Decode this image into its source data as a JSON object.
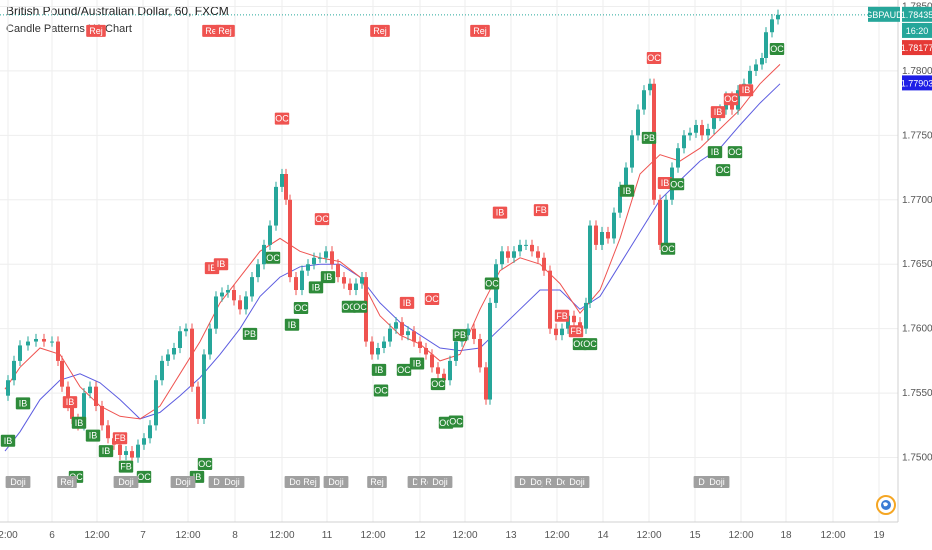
{
  "header": {
    "title": "British Pound/Australian Dollar, 60, FXCM",
    "indicator": "Candle Patterns H1 Chart"
  },
  "chart_data": {
    "type": "candlestick",
    "symbol": "GBPAUD",
    "timeframe": "60",
    "ylim": [
      1.745,
      1.7855
    ],
    "y_ticks": [
      1.75,
      1.755,
      1.76,
      1.765,
      1.77,
      1.775,
      1.78,
      1.785
    ],
    "y_tick_labels": [
      "1.75000",
      "1.75500",
      "1.76000",
      "1.76500",
      "1.77000",
      "1.77500",
      "1.78000",
      "1.78500"
    ],
    "x_ticks": [
      {
        "label": "2:00",
        "x": 8
      },
      {
        "label": "6",
        "x": 52
      },
      {
        "label": "12:00",
        "x": 97
      },
      {
        "label": "7",
        "x": 143
      },
      {
        "label": "12:00",
        "x": 188
      },
      {
        "label": "8",
        "x": 235
      },
      {
        "label": "12:00",
        "x": 282
      },
      {
        "label": "11",
        "x": 327
      },
      {
        "label": "12:00",
        "x": 373
      },
      {
        "label": "12",
        "x": 420
      },
      {
        "label": "12:00",
        "x": 465
      },
      {
        "label": "13",
        "x": 511
      },
      {
        "label": "12:00",
        "x": 557
      },
      {
        "label": "14",
        "x": 603
      },
      {
        "label": "12:00",
        "x": 649
      },
      {
        "label": "15",
        "x": 695
      },
      {
        "label": "12:00",
        "x": 741
      },
      {
        "label": "18",
        "x": 786
      },
      {
        "label": "12:00",
        "x": 833
      },
      {
        "label": "19",
        "x": 879
      }
    ],
    "price_labels": [
      {
        "text": "GBPAUD",
        "value": 1.78435,
        "color": "#26a69a"
      },
      {
        "text": "1.78435",
        "value": 1.78435,
        "color": "#26a69a"
      },
      {
        "text": "16:20",
        "value": 1.7831,
        "color": "#26a69a"
      },
      {
        "text": "1.78177",
        "value": 1.78177,
        "color": "#e53935"
      },
      {
        "text": "1.77903",
        "value": 1.77903,
        "color": "#1e1ee6"
      }
    ],
    "last_price": 1.78435,
    "ema_fast": {
      "color": "#ef5350",
      "values": [
        [
          5,
          1.7553
        ],
        [
          20,
          1.757
        ],
        [
          40,
          1.7585
        ],
        [
          60,
          1.758
        ],
        [
          80,
          1.7555
        ],
        [
          100,
          1.754
        ],
        [
          120,
          1.7532
        ],
        [
          140,
          1.753
        ],
        [
          160,
          1.754
        ],
        [
          180,
          1.7565
        ],
        [
          200,
          1.759
        ],
        [
          220,
          1.762
        ],
        [
          240,
          1.764
        ],
        [
          260,
          1.766
        ],
        [
          280,
          1.767
        ],
        [
          300,
          1.766
        ],
        [
          320,
          1.7655
        ],
        [
          340,
          1.7652
        ],
        [
          360,
          1.764
        ],
        [
          380,
          1.761
        ],
        [
          400,
          1.7595
        ],
        [
          420,
          1.7588
        ],
        [
          440,
          1.7575
        ],
        [
          460,
          1.758
        ],
        [
          480,
          1.7615
        ],
        [
          500,
          1.7645
        ],
        [
          520,
          1.7655
        ],
        [
          540,
          1.765
        ],
        [
          560,
          1.7635
        ],
        [
          580,
          1.7612
        ],
        [
          600,
          1.763
        ],
        [
          620,
          1.767
        ],
        [
          640,
          1.772
        ],
        [
          660,
          1.7735
        ],
        [
          680,
          1.773
        ],
        [
          700,
          1.774
        ],
        [
          720,
          1.7755
        ],
        [
          740,
          1.777
        ],
        [
          760,
          1.779
        ],
        [
          780,
          1.7805
        ]
      ]
    },
    "ema_slow": {
      "color": "#5c5ce0",
      "values": [
        [
          5,
          1.7505
        ],
        [
          20,
          1.752
        ],
        [
          40,
          1.7545
        ],
        [
          60,
          1.756
        ],
        [
          80,
          1.7565
        ],
        [
          100,
          1.7558
        ],
        [
          120,
          1.7545
        ],
        [
          140,
          1.753
        ],
        [
          160,
          1.7535
        ],
        [
          180,
          1.7548
        ],
        [
          200,
          1.7562
        ],
        [
          220,
          1.758
        ],
        [
          240,
          1.76
        ],
        [
          260,
          1.7625
        ],
        [
          280,
          1.764
        ],
        [
          300,
          1.7648
        ],
        [
          320,
          1.765
        ],
        [
          340,
          1.765
        ],
        [
          360,
          1.764
        ],
        [
          380,
          1.762
        ],
        [
          400,
          1.7605
        ],
        [
          420,
          1.7595
        ],
        [
          440,
          1.7585
        ],
        [
          460,
          1.7583
        ],
        [
          480,
          1.7585
        ],
        [
          500,
          1.76
        ],
        [
          520,
          1.7615
        ],
        [
          540,
          1.763
        ],
        [
          560,
          1.763
        ],
        [
          580,
          1.7615
        ],
        [
          600,
          1.7625
        ],
        [
          620,
          1.765
        ],
        [
          640,
          1.7675
        ],
        [
          660,
          1.77
        ],
        [
          680,
          1.7715
        ],
        [
          700,
          1.773
        ],
        [
          720,
          1.774
        ],
        [
          740,
          1.7758
        ],
        [
          760,
          1.7775
        ],
        [
          780,
          1.779
        ]
      ]
    },
    "close_path": [
      [
        2,
        1.7548
      ],
      [
        8,
        1.756
      ],
      [
        14,
        1.7575
      ],
      [
        20,
        1.7587
      ],
      [
        28,
        1.759
      ],
      [
        36,
        1.7592
      ],
      [
        44,
        1.759
      ],
      [
        52,
        1.759
      ],
      [
        58,
        1.7575
      ],
      [
        62,
        1.7555
      ],
      [
        68,
        1.754
      ],
      [
        72,
        1.753
      ],
      [
        78,
        1.7525
      ],
      [
        84,
        1.755
      ],
      [
        90,
        1.7555
      ],
      [
        96,
        1.754
      ],
      [
        102,
        1.7525
      ],
      [
        108,
        1.7515
      ],
      [
        114,
        1.751
      ],
      [
        120,
        1.7502
      ],
      [
        126,
        1.7505
      ],
      [
        132,
        1.75
      ],
      [
        138,
        1.751
      ],
      [
        144,
        1.7515
      ],
      [
        150,
        1.7525
      ],
      [
        156,
        1.756
      ],
      [
        162,
        1.7575
      ],
      [
        168,
        1.758
      ],
      [
        174,
        1.7585
      ],
      [
        180,
        1.7598
      ],
      [
        186,
        1.76
      ],
      [
        192,
        1.7555
      ],
      [
        198,
        1.753
      ],
      [
        204,
        1.758
      ],
      [
        210,
        1.76
      ],
      [
        216,
        1.7625
      ],
      [
        222,
        1.7628
      ],
      [
        228,
        1.763
      ],
      [
        234,
        1.7622
      ],
      [
        240,
        1.7615
      ],
      [
        246,
        1.7625
      ],
      [
        252,
        1.764
      ],
      [
        258,
        1.765
      ],
      [
        264,
        1.7665
      ],
      [
        270,
        1.768
      ],
      [
        276,
        1.771
      ],
      [
        282,
        1.772
      ],
      [
        286,
        1.77
      ],
      [
        290,
        1.764
      ],
      [
        296,
        1.763
      ],
      [
        302,
        1.7645
      ],
      [
        308,
        1.765
      ],
      [
        314,
        1.7655
      ],
      [
        320,
        1.7655
      ],
      [
        326,
        1.766
      ],
      [
        332,
        1.765
      ],
      [
        338,
        1.764
      ],
      [
        344,
        1.7635
      ],
      [
        350,
        1.763
      ],
      [
        356,
        1.7635
      ],
      [
        362,
        1.764
      ],
      [
        366,
        1.759
      ],
      [
        372,
        1.758
      ],
      [
        378,
        1.7585
      ],
      [
        384,
        1.759
      ],
      [
        390,
        1.76
      ],
      [
        396,
        1.7605
      ],
      [
        402,
        1.7595
      ],
      [
        408,
        1.7598
      ],
      [
        414,
        1.759
      ],
      [
        420,
        1.7585
      ],
      [
        426,
        1.758
      ],
      [
        432,
        1.757
      ],
      [
        438,
        1.7565
      ],
      [
        444,
        1.756
      ],
      [
        450,
        1.7575
      ],
      [
        456,
        1.759
      ],
      [
        462,
        1.7595
      ],
      [
        468,
        1.76
      ],
      [
        474,
        1.7592
      ],
      [
        480,
        1.757
      ],
      [
        486,
        1.7545
      ],
      [
        490,
        1.762
      ],
      [
        496,
        1.765
      ],
      [
        502,
        1.766
      ],
      [
        508,
        1.7655
      ],
      [
        514,
        1.766
      ],
      [
        520,
        1.7665
      ],
      [
        526,
        1.7665
      ],
      [
        532,
        1.766
      ],
      [
        538,
        1.7655
      ],
      [
        544,
        1.7645
      ],
      [
        550,
        1.76
      ],
      [
        556,
        1.7595
      ],
      [
        562,
        1.76
      ],
      [
        568,
        1.761
      ],
      [
        574,
        1.7605
      ],
      [
        580,
        1.76
      ],
      [
        586,
        1.762
      ],
      [
        590,
        1.768
      ],
      [
        596,
        1.7665
      ],
      [
        602,
        1.7675
      ],
      [
        608,
        1.767
      ],
      [
        614,
        1.769
      ],
      [
        620,
        1.771
      ],
      [
        626,
        1.7725
      ],
      [
        632,
        1.775
      ],
      [
        638,
        1.777
      ],
      [
        644,
        1.7785
      ],
      [
        650,
        1.779
      ],
      [
        654,
        1.77
      ],
      [
        660,
        1.7665
      ],
      [
        666,
        1.77
      ],
      [
        672,
        1.7725
      ],
      [
        678,
        1.774
      ],
      [
        684,
        1.775
      ],
      [
        690,
        1.7752
      ],
      [
        696,
        1.7758
      ],
      [
        702,
        1.775
      ],
      [
        708,
        1.7755
      ],
      [
        714,
        1.7765
      ],
      [
        720,
        1.777
      ],
      [
        726,
        1.778
      ],
      [
        732,
        1.777
      ],
      [
        738,
        1.7785
      ],
      [
        744,
        1.779
      ],
      [
        750,
        1.78
      ],
      [
        756,
        1.7805
      ],
      [
        762,
        1.781
      ],
      [
        766,
        1.783
      ],
      [
        772,
        1.784
      ],
      [
        778,
        1.78435
      ]
    ],
    "pattern_labels": [
      {
        "text": "Rej",
        "x": 96,
        "price": 1.7831,
        "type": "bear"
      },
      {
        "text": "Rej",
        "x": 212,
        "price": 1.7831,
        "type": "bear"
      },
      {
        "text": "Rej",
        "x": 225,
        "price": 1.7831,
        "type": "bear"
      },
      {
        "text": "Rej",
        "x": 380,
        "price": 1.7831,
        "type": "bear"
      },
      {
        "text": "Rej",
        "x": 480,
        "price": 1.7831,
        "type": "bear"
      },
      {
        "text": "OC",
        "x": 282,
        "price": 1.7763,
        "type": "bear"
      },
      {
        "text": "IB",
        "x": 212,
        "price": 1.7647,
        "type": "bear"
      },
      {
        "text": "IB",
        "x": 221,
        "price": 1.765,
        "type": "bear"
      },
      {
        "text": "OC",
        "x": 322,
        "price": 1.7685,
        "type": "bear"
      },
      {
        "text": "IB",
        "x": 407,
        "price": 1.762,
        "type": "bear"
      },
      {
        "text": "OC",
        "x": 432,
        "price": 1.7623,
        "type": "bear"
      },
      {
        "text": "IB",
        "x": 500,
        "price": 1.769,
        "type": "bear"
      },
      {
        "text": "FB",
        "x": 541,
        "price": 1.7692,
        "type": "bear"
      },
      {
        "text": "FB",
        "x": 562,
        "price": 1.761,
        "type": "bear"
      },
      {
        "text": "FB",
        "x": 576,
        "price": 1.7598,
        "type": "bear"
      },
      {
        "text": "OC",
        "x": 654,
        "price": 1.781,
        "type": "bear"
      },
      {
        "text": "IB",
        "x": 718,
        "price": 1.7768,
        "type": "bear"
      },
      {
        "text": "OC",
        "x": 731,
        "price": 1.7778,
        "type": "bear"
      },
      {
        "text": "IB",
        "x": 746,
        "price": 1.7785,
        "type": "bear"
      },
      {
        "text": "IB",
        "x": 70,
        "price": 1.7543,
        "type": "bear"
      },
      {
        "text": "FB",
        "x": 120,
        "price": 1.7515,
        "type": "bear"
      },
      {
        "text": "IB",
        "x": 665,
        "price": 1.7713,
        "type": "bear"
      },
      {
        "text": "IB",
        "x": 8,
        "price": 1.7513,
        "type": "bull"
      },
      {
        "text": "IB",
        "x": 23,
        "price": 1.7542,
        "type": "bull"
      },
      {
        "text": "IB",
        "x": 79,
        "price": 1.7527,
        "type": "bull"
      },
      {
        "text": "IB",
        "x": 93,
        "price": 1.7517,
        "type": "bull"
      },
      {
        "text": "IB",
        "x": 106,
        "price": 1.7505,
        "type": "bull"
      },
      {
        "text": "FB",
        "x": 126,
        "price": 1.7493,
        "type": "bull"
      },
      {
        "text": "PB",
        "x": 250,
        "price": 1.7596,
        "type": "bull"
      },
      {
        "text": "OC",
        "x": 273,
        "price": 1.7655,
        "type": "bull"
      },
      {
        "text": "OC",
        "x": 301,
        "price": 1.7616,
        "type": "bull"
      },
      {
        "text": "IB",
        "x": 292,
        "price": 1.7603,
        "type": "bull"
      },
      {
        "text": "IB",
        "x": 316,
        "price": 1.7632,
        "type": "bull"
      },
      {
        "text": "IB",
        "x": 328,
        "price": 1.764,
        "type": "bull"
      },
      {
        "text": "OC",
        "x": 349,
        "price": 1.7617,
        "type": "bull"
      },
      {
        "text": "OC",
        "x": 360,
        "price": 1.7617,
        "type": "bull"
      },
      {
        "text": "IB",
        "x": 379,
        "price": 1.7568,
        "type": "bull"
      },
      {
        "text": "OC",
        "x": 381,
        "price": 1.7552,
        "type": "bull"
      },
      {
        "text": "OC",
        "x": 404,
        "price": 1.7568,
        "type": "bull"
      },
      {
        "text": "IB",
        "x": 417,
        "price": 1.7573,
        "type": "bull"
      },
      {
        "text": "OC",
        "x": 438,
        "price": 1.7557,
        "type": "bull"
      },
      {
        "text": "OC",
        "x": 446,
        "price": 1.7527,
        "type": "bull"
      },
      {
        "text": "OC",
        "x": 456,
        "price": 1.7528,
        "type": "bull"
      },
      {
        "text": "PB",
        "x": 460,
        "price": 1.7595,
        "type": "bull"
      },
      {
        "text": "OC",
        "x": 492,
        "price": 1.7635,
        "type": "bull"
      },
      {
        "text": "OC",
        "x": 580,
        "price": 1.7588,
        "type": "bull"
      },
      {
        "text": "OC",
        "x": 590,
        "price": 1.7588,
        "type": "bull"
      },
      {
        "text": "IB",
        "x": 627,
        "price": 1.7707,
        "type": "bull"
      },
      {
        "text": "PB",
        "x": 649,
        "price": 1.7748,
        "type": "bull"
      },
      {
        "text": "OC",
        "x": 668,
        "price": 1.7662,
        "type": "bull"
      },
      {
        "text": "OC",
        "x": 677,
        "price": 1.7712,
        "type": "bull"
      },
      {
        "text": "IB",
        "x": 715,
        "price": 1.7737,
        "type": "bull"
      },
      {
        "text": "OC",
        "x": 723,
        "price": 1.7723,
        "type": "bull"
      },
      {
        "text": "OC",
        "x": 735,
        "price": 1.7737,
        "type": "bull"
      },
      {
        "text": "OC",
        "x": 777,
        "price": 1.7817,
        "type": "bull"
      },
      {
        "text": "OC",
        "x": 76,
        "price": 1.7485,
        "type": "bull"
      },
      {
        "text": "OC",
        "x": 144,
        "price": 1.7485,
        "type": "bull"
      },
      {
        "text": "OC",
        "x": 205,
        "price": 1.7495,
        "type": "bull"
      },
      {
        "text": "IB",
        "x": 197,
        "price": 1.7485,
        "type": "bull"
      },
      {
        "text": "FB",
        "x": 124,
        "price": 1.7481,
        "type": "bull"
      }
    ],
    "doji_labels": [
      {
        "text": "Doji",
        "x": 18
      },
      {
        "text": "Rej",
        "x": 67
      },
      {
        "text": "Doji",
        "x": 126
      },
      {
        "text": "Doji",
        "x": 183
      },
      {
        "text": "Doji",
        "x": 221
      },
      {
        "text": "Doji",
        "x": 232
      },
      {
        "text": "Doji",
        "x": 297
      },
      {
        "text": "Rej",
        "x": 310
      },
      {
        "text": "Doji",
        "x": 336
      },
      {
        "text": "Rej",
        "x": 377
      },
      {
        "text": "Doji",
        "x": 420
      },
      {
        "text": "Rej",
        "x": 427
      },
      {
        "text": "Doji",
        "x": 440
      },
      {
        "text": "Doji",
        "x": 527
      },
      {
        "text": "Doji",
        "x": 538
      },
      {
        "text": "Rej",
        "x": 552
      },
      {
        "text": "Doji",
        "x": 564
      },
      {
        "text": "Doji",
        "x": 577
      },
      {
        "text": "Doji",
        "x": 706
      },
      {
        "text": "Doji",
        "x": 717
      }
    ]
  }
}
